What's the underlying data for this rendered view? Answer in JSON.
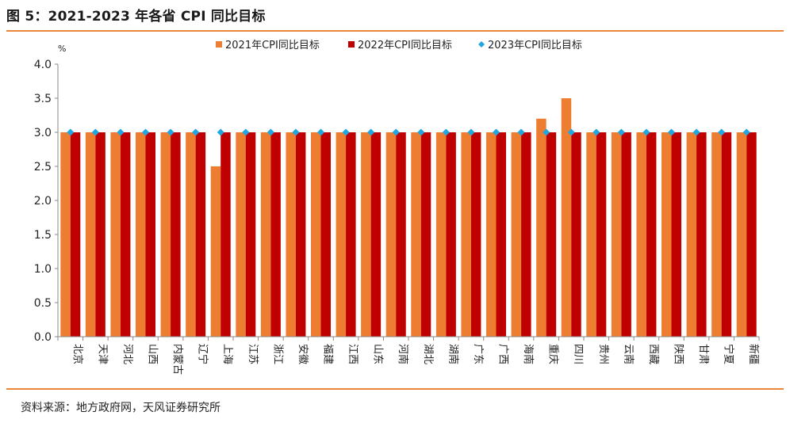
{
  "title": "图 5：2021-2023 年各省 CPI 同比目标",
  "source": "资料来源：地方政府网，天风证券研究所",
  "colors": {
    "s2021": "#ed7d31",
    "s2022": "#c00000",
    "s2023": "#22a6df",
    "rule": "#e9863a"
  },
  "chart_data": {
    "type": "bar",
    "unit": "%",
    "ylim": [
      0,
      4.0
    ],
    "yticks": [
      "0.0",
      "0.5",
      "1.0",
      "1.5",
      "2.0",
      "2.5",
      "3.0",
      "3.5",
      "4.0"
    ],
    "grid": false,
    "legend": "top-center",
    "categories": [
      "北京",
      "天津",
      "河北",
      "山西",
      "内蒙古",
      "辽宁",
      "上海",
      "江苏",
      "浙江",
      "安徽",
      "福建",
      "江西",
      "山东",
      "河南",
      "湖北",
      "湖南",
      "广东",
      "广西",
      "海南",
      "重庆",
      "四川",
      "贵州",
      "云南",
      "西藏",
      "陕西",
      "甘肃",
      "宁夏",
      "新疆"
    ],
    "series": [
      {
        "name": "2021年CPI同比目标",
        "kind": "bar",
        "values": [
          3.0,
          3.0,
          3.0,
          3.0,
          3.0,
          3.0,
          2.5,
          3.0,
          3.0,
          3.0,
          3.0,
          3.0,
          3.0,
          3.0,
          3.0,
          3.0,
          3.0,
          3.0,
          3.0,
          3.2,
          3.5,
          3.0,
          3.0,
          3.0,
          3.0,
          3.0,
          3.0,
          3.0
        ]
      },
      {
        "name": "2022年CPI同比目标",
        "kind": "bar",
        "values": [
          3.0,
          3.0,
          3.0,
          3.0,
          3.0,
          3.0,
          3.0,
          3.0,
          3.0,
          3.0,
          3.0,
          3.0,
          3.0,
          3.0,
          3.0,
          3.0,
          3.0,
          3.0,
          3.0,
          3.0,
          3.0,
          3.0,
          3.0,
          3.0,
          3.0,
          3.0,
          3.0,
          3.0
        ]
      },
      {
        "name": "2023年CPI同比目标",
        "kind": "marker",
        "values": [
          3.0,
          3.0,
          3.0,
          3.0,
          3.0,
          3.0,
          3.0,
          3.0,
          3.0,
          3.0,
          3.0,
          3.0,
          3.0,
          3.0,
          3.0,
          3.0,
          3.0,
          3.0,
          3.0,
          3.0,
          3.0,
          3.0,
          3.0,
          3.0,
          3.0,
          3.0,
          3.0,
          3.0
        ]
      }
    ]
  }
}
